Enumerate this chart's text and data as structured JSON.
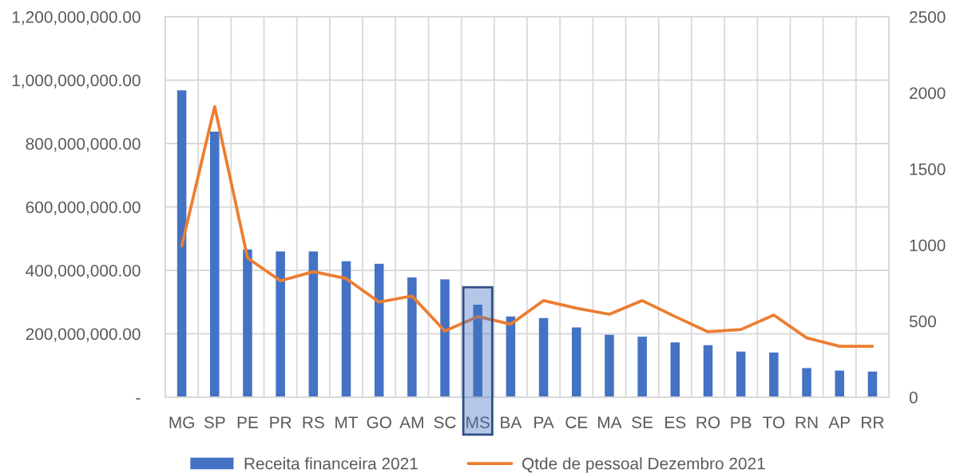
{
  "chart_data": {
    "type": "bar",
    "categories": [
      "MG",
      "SP",
      "PE",
      "PR",
      "RS",
      "MT",
      "GO",
      "AM",
      "SC",
      "MS",
      "BA",
      "PA",
      "CE",
      "MA",
      "SE",
      "ES",
      "RO",
      "PB",
      "TO",
      "RN",
      "AP",
      "RR"
    ],
    "series": [
      {
        "name": "Receita financeira 2021",
        "color": "#4472c4",
        "values": [
          968000000,
          838000000,
          466000000,
          460000000,
          460000000,
          429000000,
          421000000,
          378000000,
          372000000,
          292000000,
          255000000,
          250000000,
          220000000,
          197000000,
          191000000,
          173000000,
          164000000,
          144000000,
          141000000,
          92000000,
          84000000,
          81000000
        ]
      },
      {
        "name": "Qtde de pessoal Dezembro 2021",
        "type": "line",
        "axis": "y2",
        "color": "#ed7d31",
        "values": [
          995,
          1910,
          915,
          765,
          825,
          780,
          625,
          665,
          435,
          530,
          480,
          635,
          585,
          545,
          635,
          530,
          430,
          445,
          540,
          390,
          335,
          335
        ]
      }
    ],
    "ylim": [
      0,
      1200000000
    ],
    "yticks": [
      {
        "value": 0,
        "label": "-"
      },
      {
        "value": 200000000,
        "label": "200,000,000.00"
      },
      {
        "value": 400000000,
        "label": "400,000,000.00"
      },
      {
        "value": 600000000,
        "label": "600,000,000.00"
      },
      {
        "value": 800000000,
        "label": "800,000,000.00"
      },
      {
        "value": 1000000000,
        "label": "1,000,000,000.00"
      },
      {
        "value": 1200000000,
        "label": "1,200,000,000.00"
      }
    ],
    "y2lim": [
      0,
      2500
    ],
    "y2ticks": [
      0,
      500,
      1000,
      1500,
      2000,
      2500
    ],
    "bands": [
      {
        "axis": "x",
        "from": "MS",
        "to": "MS",
        "color": "#4472c4"
      }
    ],
    "grid": true,
    "legend": "bottom"
  }
}
